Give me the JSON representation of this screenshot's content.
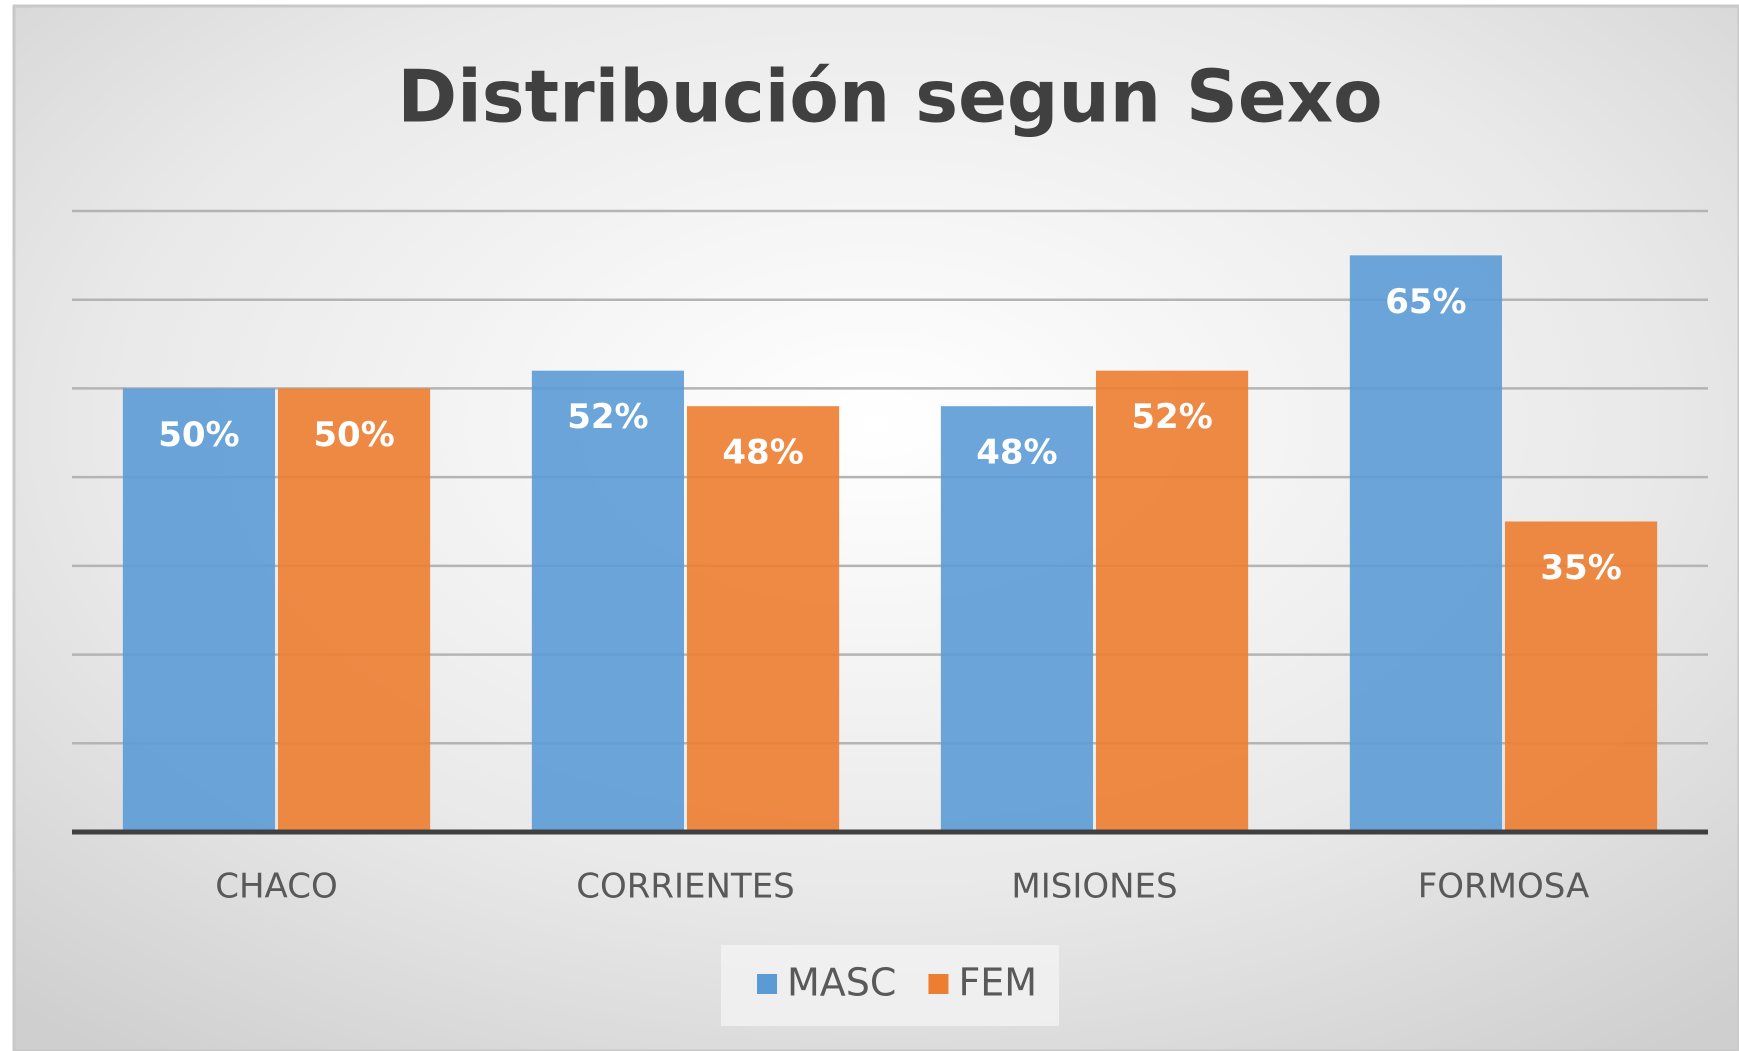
{
  "chart_data": {
    "type": "bar",
    "title": "Distribución segun Sexo",
    "categories": [
      "CHACO",
      "CORRIENTES",
      "MISIONES",
      "FORMOSA"
    ],
    "series": [
      {
        "name": "MASC",
        "color": "#5b9bd5",
        "values": [
          50,
          52,
          48,
          65
        ],
        "value_labels": [
          "50%",
          "52%",
          "48%",
          "65%"
        ]
      },
      {
        "name": "FEM",
        "color": "#ed7d31",
        "values": [
          50,
          48,
          52,
          35
        ],
        "value_labels": [
          "50%",
          "48%",
          "52%",
          "35%"
        ]
      }
    ],
    "ylim": [
      0,
      70
    ],
    "yticks": [
      0,
      10,
      20,
      30,
      40,
      50,
      60,
      70
    ],
    "grid": true,
    "legend": "bottom"
  }
}
